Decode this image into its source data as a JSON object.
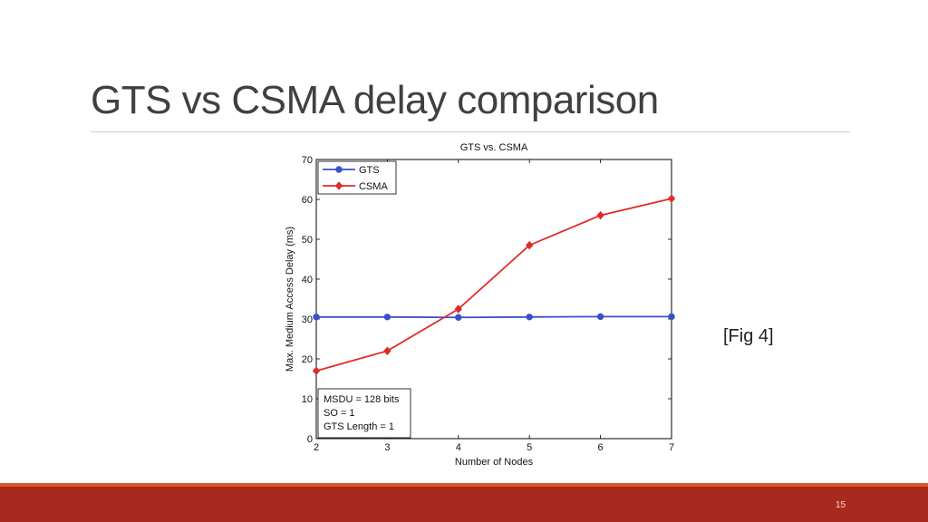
{
  "slide": {
    "title": "GTS vs CSMA delay comparison",
    "figure_label": "[Fig 4]",
    "page_number": "15"
  },
  "colors": {
    "title": "#404040",
    "footer_band": "#a82a1e",
    "footer_accent": "#d9592a",
    "gts": "#3a50c8",
    "csma": "#e02a2a"
  },
  "chart_data": {
    "type": "line",
    "title": "GTS vs. CSMA",
    "xlabel": "Number of Nodes",
    "ylabel": "Max. Medium Access Delay (ms)",
    "x": [
      2,
      3,
      4,
      5,
      6,
      7
    ],
    "xlim": [
      2,
      7
    ],
    "ylim": [
      0,
      70
    ],
    "xticks": [
      "2",
      "3",
      "4",
      "5",
      "6",
      "7"
    ],
    "yticks": [
      "0",
      "10",
      "20",
      "30",
      "40",
      "50",
      "60",
      "70"
    ],
    "series": [
      {
        "name": "GTS",
        "color": "#3a50c8",
        "marker": "circle",
        "values": [
          30.5,
          30.5,
          30.4,
          30.5,
          30.6,
          30.6
        ]
      },
      {
        "name": "CSMA",
        "color": "#e02a2a",
        "marker": "diamond",
        "values": [
          17,
          22,
          32.5,
          48.5,
          56,
          60.2
        ]
      }
    ],
    "legend": {
      "position": "top-left",
      "entries": [
        "GTS",
        "CSMA"
      ]
    },
    "annotation": [
      "MSDU = 128 bits",
      "SO = 1",
      "GTS Length = 1"
    ]
  }
}
